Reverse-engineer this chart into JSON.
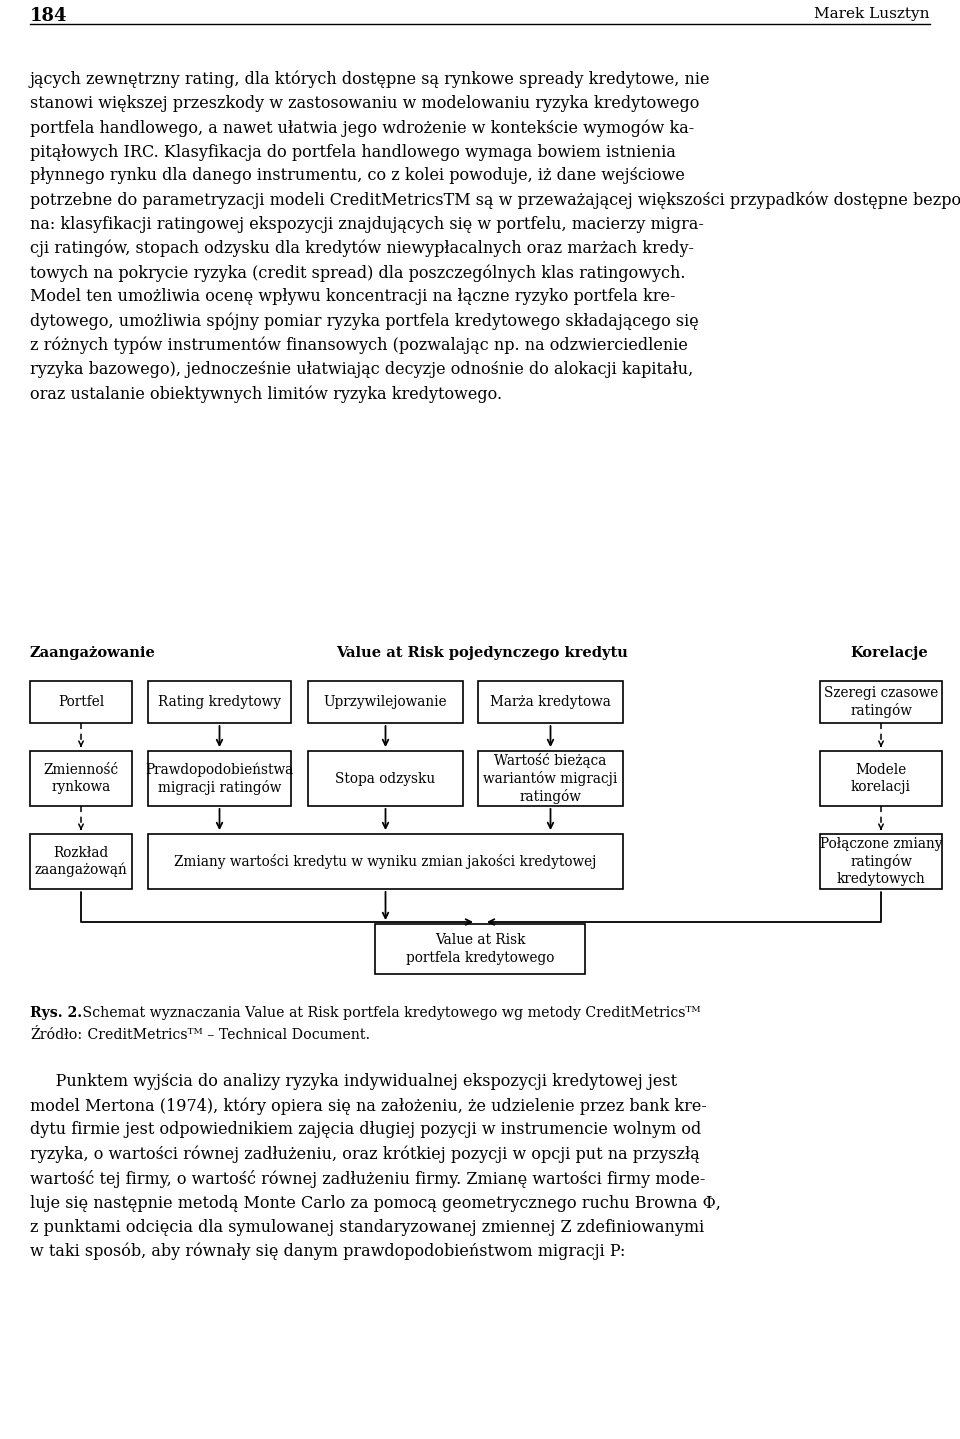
{
  "page_number": "184",
  "author": "Marek Lusztyn",
  "diagram_label_left": "Zaangażowanie",
  "diagram_label_center": "Value at Risk pojedynczego kredytu",
  "diagram_label_right": "Korelacje",
  "para1_line1": "jących zewnętrzny rating, dla których dostępne są rynkowe spready kredytowe, nie",
  "para1_line2": "stanowi większej przeszkody w zastosowaniu w modelowaniu ryzyka kredytowego",
  "para1_line3": "portfela handlowego, a nawet ułatwia jego wdrożenie w kontekście wymogów ka-",
  "para1_line4": "pitąłowych IRC. Klasyfikacja do portfela handlowego wymaga bowiem istnienia",
  "para1_line5": "płynnego rynku dla danego instrumentu, co z kolei powoduje, iż dane wejściowe",
  "para1_line6a": "potrzebne do parametryzacji modeli CreditMetrics",
  "para1_line6b": "TM",
  "para1_line6c": " są w przeważającej większości przypadków dostępne bezpośrednio na rynku finansowym. Model ten opiera się",
  "para1_line7": "na: klasyfikacji ratingowej ekspozycji znajdujących się w portfelu, macierzy migra-",
  "para1_line8": "cji ratingów, stopach odzysku dla kredytów niewypłacalnych oraz marżach kredy-",
  "para1_line9a": "towych na pokrycie ryzyka (",
  "para1_line9b": "credit spread",
  "para1_line9c": ") dla poszczególnych klas ratingowych.",
  "para1_line10": "Model ten umożliwia ocenę wpływu koncentracji na łączne ryzyko portfela kre-",
  "para1_line11": "dytowego, umożliwia spójny pomiar ryzyka portfela kredytowego składającego się",
  "para1_line12": "z różnych typów instrumentów finansowych (pozwalając np. na odzwierciedlenie",
  "para1_line13": "ryzyka bazowego), jednocześnie ułatwiając decyzje odnośnie do alokacji kapitału,",
  "para1_line14": "oraz ustalanie obiektywnych limitów ryzyka kredytowego.",
  "box_r1_1": "Portfel",
  "box_r1_2": "Rating kredytowy",
  "box_r1_3": "Uprzywilejowanie",
  "box_r1_4": "Marża kredytowa",
  "box_r1_5": "Szeregi czasowe\nratingów",
  "box_r2_1": "Zmienność\nrynkowa",
  "box_r2_2": "Prawdopodobieństwa\nmigracji ratingów",
  "box_r2_3": "Stopa odzysku",
  "box_r2_4": "Wartość bieżąca\nwariantów migracji\nratingów",
  "box_r2_5": "Modele\nkorelacji",
  "box_r3_left": "Rozkład\nzaangażowąń",
  "box_r3_center": "Zmiany wartości kredytu w wyniku zmian jakości kredytowej",
  "box_r3_right": "Połączone zmiany\nratingów\nkredytowych",
  "box_final": "Value at Risk\nportfela kredytowego",
  "caption_bold": "Rys. 2.",
  "caption_rest": " Schemat wyznaczania Value at Risk portfela kredytowego wg metody CreditMetricsᵀᴹ",
  "source_label": "X́ródło:",
  "source_rest": " CreditMetricsᵀᴹ – Technical Document.",
  "para2_indent": "     Punktem wyjścia do analizy ryzyka indywidualnej ekspozycji kredytowej jest",
  "para2_line2": "model Mertona (1974), który opiera się na założeniu, że udzielenie przez bank kre-",
  "para2_line3": "dytu firmie jest odpowiednikiem zajęcia długiej pozycji w instrumencie wolnym od",
  "para2_line4": "ryzyka, o wartości równej zadłużeniu, oraz krótkiej pozycji w opcji put na przyszłą",
  "para2_line5": "wartość tej firmy, o wartość równej zadłużeniu firmy. Zmianę wartości firmy mode-",
  "para2_line6a": "luje się następnie metodą Monte Carlo za pomocą geometrycznego ruchu Browna Φ,",
  "para2_line7a": "z punktami odcięcia dla symulowanej standaryzowanej zmiennej ",
  "para2_line7b": "Z",
  "para2_line7c": " zdefiniowanymi",
  "para2_line8a": "w taki sposób, aby równały się danym prawdopodobieństwom migracji ",
  "para2_line8b": "P",
  "para2_line8c": ":"
}
